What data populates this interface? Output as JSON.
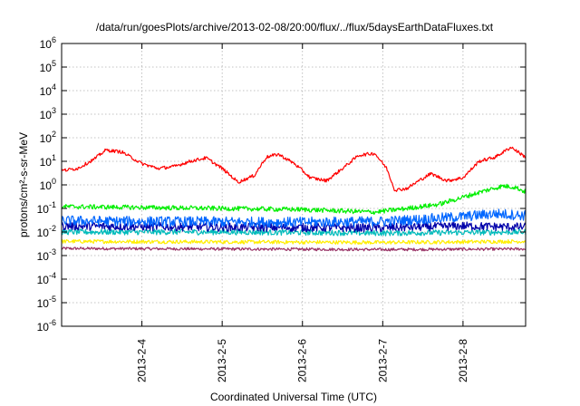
{
  "chart_data": {
    "type": "line",
    "title": "/data/run/goesPlots/archive/2013-02-08/20:00/flux/../flux/5daysEarthDataFluxes.txt",
    "xlabel": "Coordinated Universal Time (UTC)",
    "ylabel": "protons/cm²-s-sr-MeV",
    "yscale": "log",
    "ylim": [
      1e-06,
      1000000.0
    ],
    "xlim_days": [
      0,
      5.78
    ],
    "grid": true,
    "x_ticks": [
      {
        "label": "2013-2-4",
        "day": 1.0
      },
      {
        "label": "2013-2-5",
        "day": 2.0
      },
      {
        "label": "2013-2-6",
        "day": 3.0
      },
      {
        "label": "2013-2-7",
        "day": 4.0
      },
      {
        "label": "2013-2-8",
        "day": 5.0
      }
    ],
    "y_ticks": [
      {
        "base": "10",
        "exp": "-6",
        "value": 1e-06
      },
      {
        "base": "10",
        "exp": "-5",
        "value": 1e-05
      },
      {
        "base": "10",
        "exp": "-4",
        "value": 0.0001
      },
      {
        "base": "10",
        "exp": "-3",
        "value": 0.001
      },
      {
        "base": "10",
        "exp": "-2",
        "value": 0.01
      },
      {
        "base": "10",
        "exp": "-1",
        "value": 0.1
      },
      {
        "base": "10",
        "exp": "0",
        "value": 1
      },
      {
        "base": "10",
        "exp": "1",
        "value": 10
      },
      {
        "base": "10",
        "exp": "2",
        "value": 100
      },
      {
        "base": "10",
        "exp": "3",
        "value": 1000
      },
      {
        "base": "10",
        "exp": "4",
        "value": 10000
      },
      {
        "base": "10",
        "exp": "5",
        "value": 100000
      },
      {
        "base": "10",
        "exp": "6",
        "value": 1000000
      }
    ],
    "series": [
      {
        "color": "#ff0000",
        "noise": 0.07,
        "x": [
          0,
          0.2,
          0.4,
          0.55,
          0.75,
          1.0,
          1.2,
          1.4,
          1.6,
          1.8,
          2.0,
          2.2,
          2.4,
          2.55,
          2.7,
          2.9,
          3.1,
          3.3,
          3.5,
          3.7,
          3.9,
          4.05,
          4.15,
          4.3,
          4.45,
          4.6,
          4.8,
          5.0,
          5.2,
          5.4,
          5.6,
          5.78
        ],
        "y": [
          4,
          5,
          12,
          30,
          25,
          8,
          5,
          6,
          10,
          14,
          5,
          1.3,
          2.5,
          15,
          20,
          8,
          2,
          1.5,
          5,
          18,
          22,
          5,
          0.6,
          0.7,
          1.5,
          3,
          1.5,
          2,
          10,
          15,
          40,
          15
        ]
      },
      {
        "color": "#00ee00",
        "noise": 0.1,
        "x": [
          0,
          1,
          2,
          3,
          3.9,
          4.3,
          4.7,
          5.0,
          5.3,
          5.5,
          5.65,
          5.78
        ],
        "y": [
          0.12,
          0.11,
          0.1,
          0.09,
          0.07,
          0.1,
          0.15,
          0.3,
          0.6,
          0.9,
          0.8,
          0.5
        ]
      },
      {
        "color": "#0066ff",
        "noise": 0.22,
        "x": [
          0,
          1,
          2,
          3,
          4,
          4.5,
          5.0,
          5.4,
          5.78
        ],
        "y": [
          0.03,
          0.028,
          0.027,
          0.026,
          0.028,
          0.035,
          0.045,
          0.06,
          0.05
        ]
      },
      {
        "color": "#0000aa",
        "noise": 0.18,
        "x": [
          0,
          2,
          4,
          5,
          5.78
        ],
        "y": [
          0.018,
          0.016,
          0.015,
          0.018,
          0.016
        ]
      },
      {
        "color": "#00bbbb",
        "noise": 0.12,
        "x": [
          0,
          2,
          4,
          5.78
        ],
        "y": [
          0.01,
          0.01,
          0.009,
          0.01
        ]
      },
      {
        "color": "#ffee00",
        "noise": 0.08,
        "x": [
          0,
          2,
          4,
          5.78
        ],
        "y": [
          0.004,
          0.0038,
          0.0036,
          0.004
        ]
      },
      {
        "color": "#993366",
        "noise": 0.06,
        "x": [
          0,
          2,
          4,
          5.78
        ],
        "y": [
          0.002,
          0.0019,
          0.0018,
          0.0019
        ]
      }
    ]
  }
}
